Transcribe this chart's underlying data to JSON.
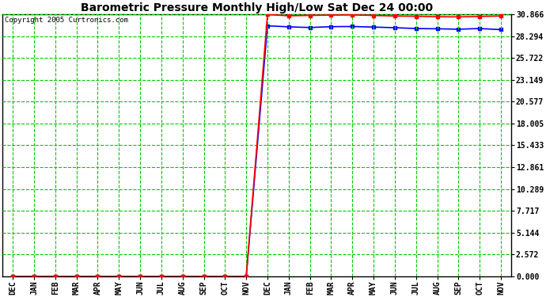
{
  "title": "Barometric Pressure Monthly High/Low Sat Dec 24 00:00",
  "copyright": "Copyright 2005 Curtronics.com",
  "x_labels": [
    "DEC",
    "JAN",
    "FEB",
    "MAR",
    "APR",
    "MAY",
    "JUN",
    "JUL",
    "AUG",
    "SEP",
    "OCT",
    "NOV",
    "DEC",
    "JAN",
    "FEB",
    "MAR",
    "APR",
    "MAY",
    "JUN",
    "JUL",
    "AUG",
    "SEP",
    "OCT",
    "NOV"
  ],
  "y_ticks": [
    0.0,
    2.572,
    5.144,
    7.717,
    10.289,
    12.861,
    15.433,
    18.005,
    20.577,
    23.149,
    25.722,
    28.294,
    30.866
  ],
  "high_values": [
    0.0,
    0.0,
    0.0,
    0.0,
    0.0,
    0.0,
    0.0,
    0.0,
    0.0,
    0.0,
    0.0,
    0.0,
    30.82,
    30.68,
    30.72,
    30.76,
    30.78,
    30.72,
    30.65,
    30.62,
    30.58,
    30.55,
    30.6,
    30.65
  ],
  "low_values": [
    0.0,
    0.0,
    0.0,
    0.0,
    0.0,
    0.0,
    0.0,
    0.0,
    0.0,
    0.0,
    0.0,
    0.0,
    29.5,
    29.38,
    29.3,
    29.4,
    29.42,
    29.35,
    29.28,
    29.18,
    29.15,
    29.1,
    29.18,
    29.05
  ],
  "high_color": "#ff0000",
  "low_color": "#0000ff",
  "grid_color": "#00cc00",
  "background_color": "#ffffff",
  "plot_bg_color": "#ffffff",
  "title_fontsize": 10,
  "axis_fontsize": 7,
  "ylim": [
    0.0,
    30.866
  ],
  "line_width": 1.2,
  "marker": "s",
  "marker_size": 2.5
}
